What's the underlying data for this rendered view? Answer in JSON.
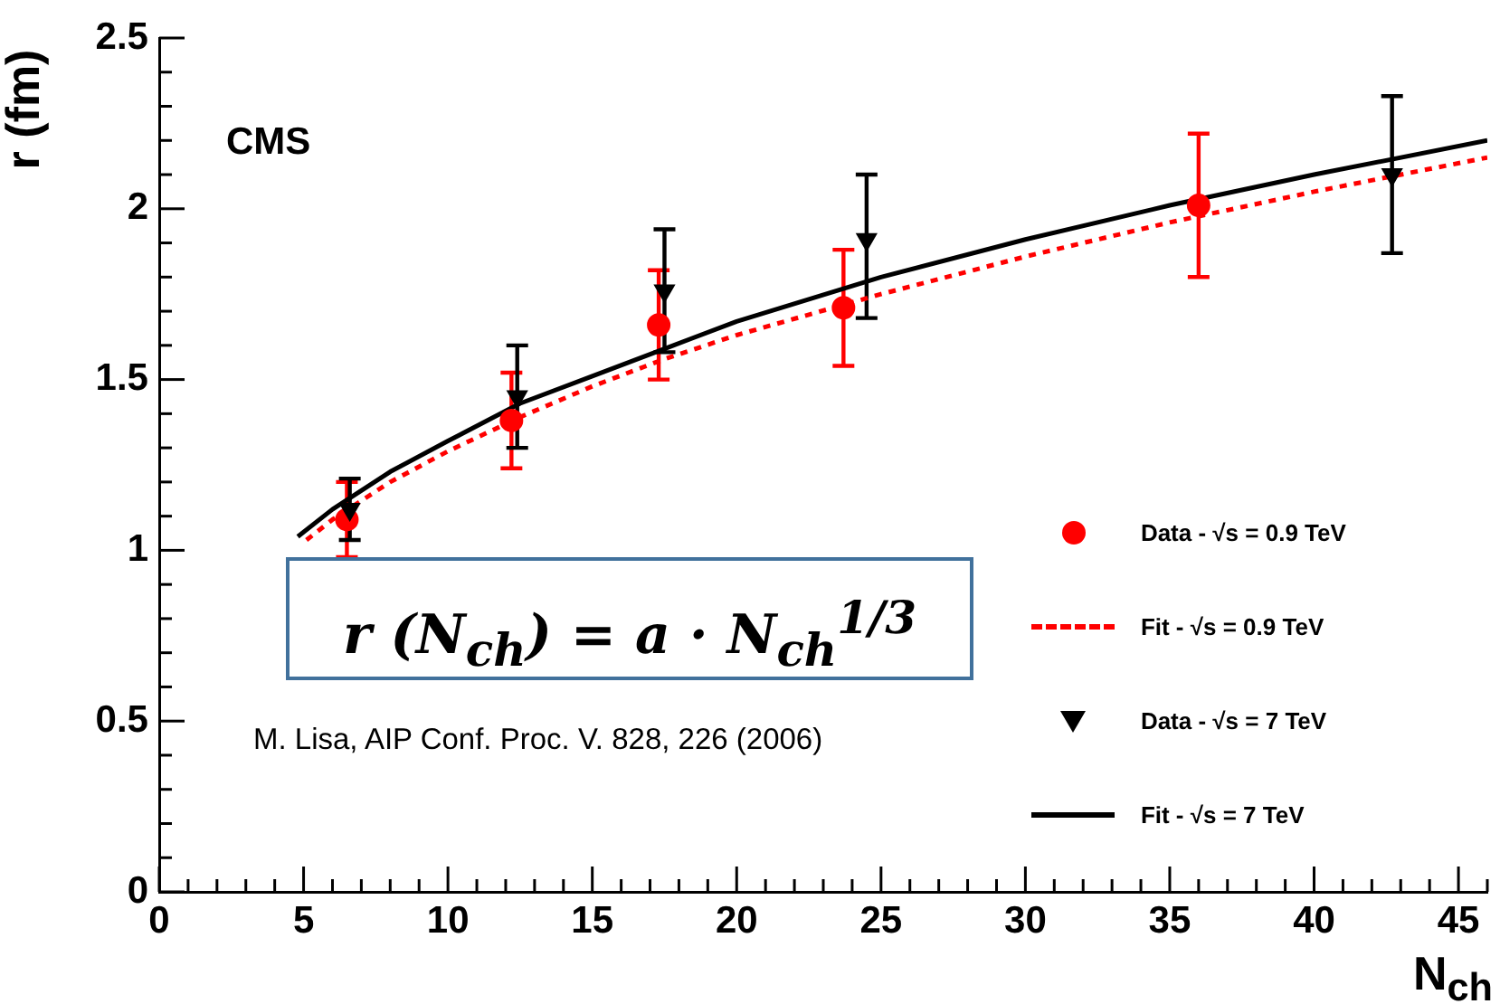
{
  "chart_data": {
    "type": "scatter",
    "xlabel": "N$_{ch}$",
    "ylabel": "r (fm)",
    "xlim": [
      0,
      46
    ],
    "ylim": [
      0,
      2.5
    ],
    "xticks": [
      0,
      {
        "value": 1,
        "label": null
      },
      {
        "value": 2,
        "label": null
      },
      {
        "value": 3,
        "label": null
      },
      {
        "value": 4,
        "label": null
      },
      5,
      {
        "value": 6,
        "label": null
      },
      {
        "value": 7,
        "label": null
      },
      {
        "value": 8,
        "label": null
      },
      {
        "value": 9,
        "label": null
      },
      10,
      {
        "value": 11,
        "label": null
      },
      {
        "value": 12,
        "label": null
      },
      {
        "value": 13,
        "label": null
      },
      {
        "value": 14,
        "label": null
      },
      15,
      {
        "value": 16,
        "label": null
      },
      {
        "value": 17,
        "label": null
      },
      {
        "value": 18,
        "label": null
      },
      {
        "value": 19,
        "label": null
      },
      20,
      {
        "value": 21,
        "label": null
      },
      {
        "value": 22,
        "label": null
      },
      {
        "value": 23,
        "label": null
      },
      {
        "value": 24,
        "label": null
      },
      25,
      {
        "value": 26,
        "label": null
      },
      {
        "value": 27,
        "label": null
      },
      {
        "value": 28,
        "label": null
      },
      {
        "value": 29,
        "label": null
      },
      30,
      {
        "value": 31,
        "label": null
      },
      {
        "value": 32,
        "label": null
      },
      {
        "value": 33,
        "label": null
      },
      {
        "value": 34,
        "label": null
      },
      35,
      {
        "value": 36,
        "label": null
      },
      {
        "value": 37,
        "label": null
      },
      {
        "value": 38,
        "label": null
      },
      {
        "value": 39,
        "label": null
      },
      40,
      {
        "value": 41,
        "label": null
      },
      {
        "value": 42,
        "label": null
      },
      {
        "value": 43,
        "label": null
      },
      {
        "value": 44,
        "label": null
      },
      45,
      {
        "value": 46,
        "label": null
      }
    ],
    "yticks": [
      0,
      {
        "value": 0.1,
        "label": null
      },
      {
        "value": 0.2,
        "label": null
      },
      {
        "value": 0.3,
        "label": null
      },
      {
        "value": 0.4,
        "label": null
      },
      0.5,
      {
        "value": 0.6,
        "label": null
      },
      {
        "value": 0.7,
        "label": null
      },
      {
        "value": 0.8,
        "label": null
      },
      {
        "value": 0.9,
        "label": null
      },
      1,
      {
        "value": 1.1,
        "label": null
      },
      {
        "value": 1.2,
        "label": null
      },
      {
        "value": 1.3,
        "label": null
      },
      {
        "value": 1.4,
        "label": null
      },
      1.5,
      {
        "value": 1.6,
        "label": null
      },
      {
        "value": 1.7,
        "label": null
      },
      {
        "value": 1.8,
        "label": null
      },
      {
        "value": 1.9,
        "label": null
      },
      2,
      {
        "value": 2.1,
        "label": null
      },
      {
        "value": 2.2,
        "label": null
      },
      {
        "value": 2.3,
        "label": null
      },
      {
        "value": 2.4,
        "label": null
      },
      2.5
    ],
    "grid": false,
    "legend": "right",
    "series": [
      {
        "name": "Data - √s = 0.9 TeV",
        "type": "scatter",
        "marker": "circle",
        "color": "#ff0000",
        "x": [
          6.5,
          12.2,
          17.3,
          23.7,
          36.0
        ],
        "values": [
          1.09,
          1.38,
          1.66,
          1.71,
          2.01
        ],
        "errors": [
          0.11,
          0.14,
          0.16,
          0.17,
          0.21
        ]
      },
      {
        "name": "Fit - √s = 0.9 TeV",
        "type": "line",
        "marker": "none",
        "line_style": "dashed",
        "color": "#ff0000",
        "x": [
          5.1,
          6,
          8,
          10,
          12.5,
          15,
          17.5,
          20,
          25,
          30,
          35,
          40,
          46
        ],
        "values": [
          1.03,
          1.09,
          1.2,
          1.29,
          1.39,
          1.48,
          1.56,
          1.63,
          1.75,
          1.86,
          1.96,
          2.05,
          2.15
        ]
      },
      {
        "name": "Data - √s = 7 TeV",
        "type": "scatter",
        "marker": "triangle",
        "color": "#000000",
        "x": [
          6.6,
          12.4,
          17.5,
          24.5,
          42.7
        ],
        "values": [
          1.12,
          1.45,
          1.76,
          1.91,
          2.1
        ],
        "errors": [
          0.09,
          0.15,
          0.18,
          [
            1.68,
            2.1
          ],
          0.23
        ]
      },
      {
        "name": "Fit - √s = 7 TeV",
        "type": "line",
        "marker": "none",
        "line_style": "solid",
        "color": "#000000",
        "x": [
          4.8,
          6,
          8,
          10,
          12.5,
          15,
          17.5,
          20,
          25,
          30,
          35,
          40,
          46
        ],
        "values": [
          1.04,
          1.12,
          1.23,
          1.32,
          1.43,
          1.51,
          1.59,
          1.67,
          1.8,
          1.91,
          2.01,
          2.1,
          2.2
        ]
      }
    ],
    "annotations": [
      "CMS",
      "r (N$_{ch}$) = a · N$_{ch}$$^{1/3}$",
      "M. Lisa, AIP Conf. Proc. V. 828, 226 (2006)"
    ]
  }
}
